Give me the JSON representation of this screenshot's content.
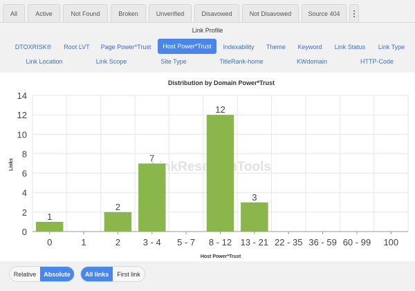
{
  "tabs": [
    "All",
    "Active",
    "Not Found",
    "Broken",
    "Unverified",
    "Disavowed",
    "Not Disavowed",
    "Source 404"
  ],
  "panel": {
    "title": "Link Profile",
    "row1": [
      "DTOXRISK®",
      "Root LVT",
      "Page Power*Trust",
      "Host Power*Trust",
      "Indexability",
      "Theme",
      "Keyword",
      "Link Status",
      "Link Type"
    ],
    "row2": [
      "Link Location",
      "Link Scope",
      "Site Type",
      "TitleRank-home",
      "KWdomain",
      "HTTP-Code"
    ],
    "active": "Host Power*Trust"
  },
  "chart_data": {
    "type": "bar",
    "title": "Distribution by Domain Power*Trust",
    "xlabel": "Host Power*Trust",
    "ylabel": "Links",
    "categories": [
      "0",
      "1",
      "2",
      "3 - 4",
      "5 - 7",
      "8 - 12",
      "13 - 21",
      "22 - 35",
      "36 - 59",
      "60 - 99",
      "100"
    ],
    "values": [
      1,
      0,
      2,
      7,
      0,
      12,
      3,
      0,
      0,
      0,
      0
    ],
    "ylim": [
      0,
      14
    ],
    "yticks": [
      0,
      2,
      4,
      6,
      8,
      10,
      12,
      14
    ],
    "grid": true,
    "bar_color": "#8ab64c",
    "watermark": "LinkResearchTools"
  },
  "footer": {
    "mode": [
      "Relative",
      "Absolute"
    ],
    "mode_active": "Absolute",
    "scope": [
      "All links",
      "First link"
    ],
    "scope_active": "All links"
  },
  "colors": {
    "accent": "#4a86e8",
    "bar": "#8ab64c",
    "link": "#3b6fc7"
  }
}
